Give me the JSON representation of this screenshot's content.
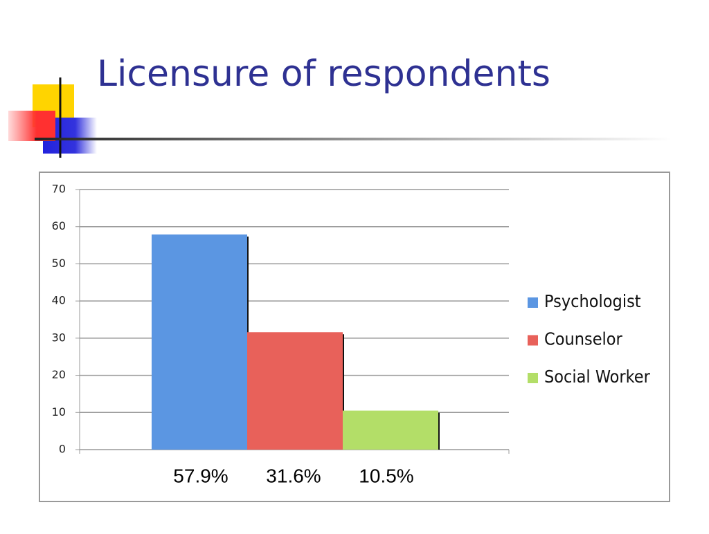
{
  "chart_data": {
    "type": "bar",
    "title": "Licensure of respondents",
    "series": [
      {
        "name": "Psychologist",
        "color": "#5b96e2",
        "values": [
          57.9
        ],
        "value_labels": [
          "57.9%"
        ]
      },
      {
        "name": "Counselor",
        "color": "#e8615a",
        "values": [
          31.6
        ],
        "value_labels": [
          "31.6%"
        ]
      },
      {
        "name": "Social Worker",
        "color": "#b3de68",
        "values": [
          10.5
        ],
        "value_labels": [
          "10.5%"
        ]
      }
    ],
    "ylim": [
      0,
      70
    ],
    "yticks": [
      0,
      10,
      20,
      30,
      40,
      50,
      60,
      70
    ],
    "grid": true,
    "legend": "right"
  }
}
